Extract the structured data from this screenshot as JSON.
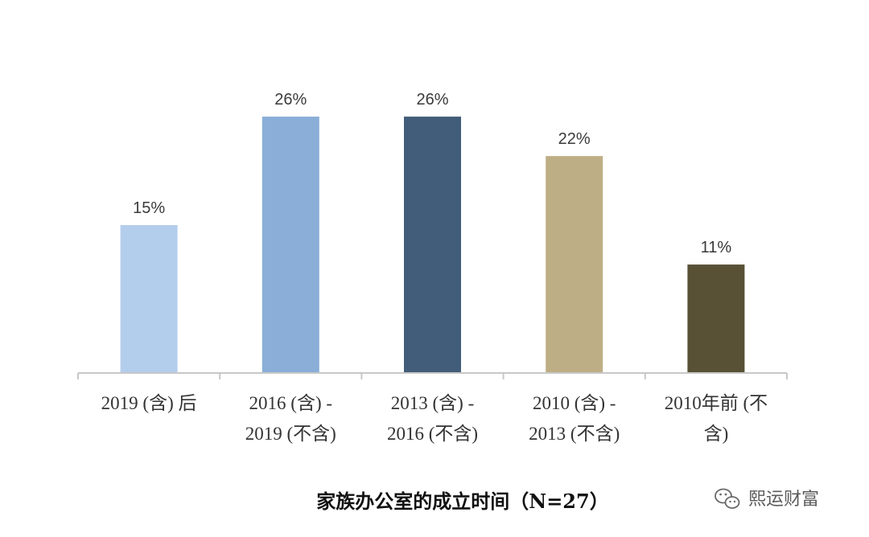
{
  "chart_data": {
    "type": "bar",
    "categories": [
      [
        "2019 (含) 后"
      ],
      [
        "2016 (含) -",
        "2019 (不含)"
      ],
      [
        "2013 (含) -",
        "2016 (不含)"
      ],
      [
        "2010 (含) -",
        "2013 (不含)"
      ],
      [
        "2010年前 (不",
        "含)"
      ]
    ],
    "values": [
      15,
      26,
      26,
      22,
      11
    ],
    "data_labels": [
      "15%",
      "26%",
      "26%",
      "22%",
      "11%"
    ],
    "colors": [
      "#b3cdec",
      "#8aaed8",
      "#425d7a",
      "#bdae85",
      "#585136"
    ],
    "ylim": [
      0,
      30
    ],
    "grid": false,
    "legend": "none",
    "title": "家族办公室的成立时间（N=27）",
    "xlabel": "",
    "ylabel": ""
  },
  "watermark": {
    "text": "熙运财富",
    "icon": "wechat-icon"
  }
}
